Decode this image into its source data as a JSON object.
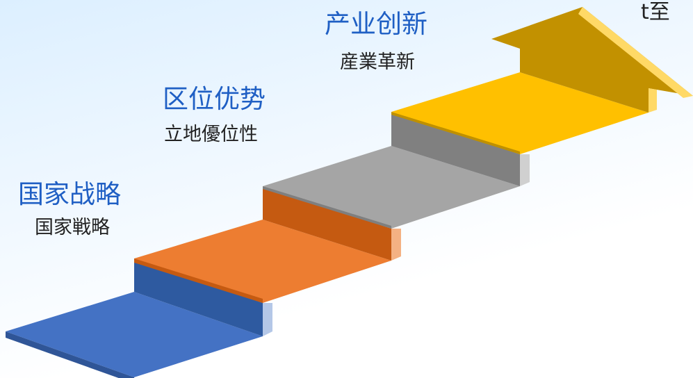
{
  "steps": [
    {
      "title": "国家战略",
      "subtitle": "国家戦略",
      "color": "#4472c4"
    },
    {
      "title": "区位优势",
      "subtitle": "立地優位性",
      "color": "#ed7d31"
    },
    {
      "title": "产业创新",
      "subtitle": "産業革新",
      "color": "#a5a5a5"
    },
    {
      "title": "",
      "subtitle": "",
      "color": "#ffc000"
    }
  ],
  "corner_fragment": "t至",
  "colors": {
    "title_text": "#1f5fc4",
    "subtitle_text": "#222222"
  }
}
